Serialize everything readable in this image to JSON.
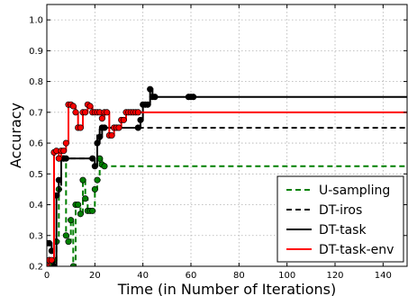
{
  "chart_data": {
    "type": "line",
    "title": "",
    "xlabel": "Time (in Number of Iterations)",
    "ylabel": "Accuracy",
    "xlim": [
      0,
      150
    ],
    "ylim": [
      0.2,
      1.05
    ],
    "xticks": [
      0,
      20,
      40,
      60,
      80,
      100,
      120,
      140
    ],
    "yticks": [
      0.2,
      0.3,
      0.4,
      0.5,
      0.6,
      0.7,
      0.8,
      0.9,
      1.0
    ],
    "xtick_labels": [
      "0",
      "20",
      "40",
      "60",
      "80",
      "100",
      "120",
      "140"
    ],
    "ytick_labels": [
      "0.2",
      "0.3",
      "0.4",
      "0.5",
      "0.6",
      "0.7",
      "0.8",
      "0.9",
      "1.0"
    ],
    "grid": true,
    "legend_position": "bottom-right",
    "series": [
      {
        "name": "U-sampling",
        "color": "#008000",
        "linestyle": "dashed",
        "marker": "circle",
        "x": [
          0,
          1,
          2,
          3,
          4,
          5,
          6,
          7,
          8,
          9,
          10,
          11,
          12,
          13,
          14,
          15,
          16,
          17,
          18,
          19,
          20,
          21,
          22,
          23,
          24,
          150
        ],
        "y": [
          0.2,
          0.22,
          0.2,
          0.22,
          0.28,
          0.45,
          0.55,
          0.55,
          0.3,
          0.28,
          0.35,
          0.2,
          0.4,
          0.4,
          0.37,
          0.48,
          0.42,
          0.38,
          0.38,
          0.38,
          0.45,
          0.48,
          0.55,
          0.53,
          0.525,
          0.525
        ]
      },
      {
        "name": "DT-iros",
        "color": "#000000",
        "linestyle": "dashed",
        "marker": "none",
        "x": [
          0,
          2,
          3,
          4,
          5,
          6,
          20,
          21,
          22,
          24,
          40,
          41,
          150
        ],
        "y": [
          0.275,
          0.275,
          0.43,
          0.43,
          0.45,
          0.55,
          0.55,
          0.625,
          0.65,
          0.65,
          0.65,
          0.65,
          0.65
        ]
      },
      {
        "name": "DT-task",
        "color": "#000000",
        "linestyle": "solid",
        "marker": "circle",
        "x": [
          0,
          1,
          2,
          3,
          4,
          5,
          6,
          7,
          8,
          19,
          20,
          21,
          22,
          23,
          24,
          38,
          39,
          40,
          41,
          42,
          43,
          44,
          45,
          59,
          60,
          61,
          150
        ],
        "y": [
          0.275,
          0.275,
          0.25,
          0.2,
          0.43,
          0.48,
          0.55,
          0.55,
          0.55,
          0.55,
          0.525,
          0.6,
          0.62,
          0.65,
          0.65,
          0.65,
          0.675,
          0.725,
          0.725,
          0.725,
          0.775,
          0.75,
          0.75,
          0.75,
          0.75,
          0.75,
          0.75
        ]
      },
      {
        "name": "DT-task-env",
        "color": "#ff0000",
        "linestyle": "solid",
        "marker": "circle",
        "x": [
          0,
          1,
          2,
          3,
          4,
          5,
          6,
          7,
          8,
          9,
          10,
          11,
          12,
          13,
          14,
          15,
          16,
          17,
          18,
          19,
          20,
          21,
          22,
          23,
          24,
          25,
          26,
          27,
          28,
          29,
          30,
          31,
          32,
          33,
          34,
          35,
          36,
          37,
          38,
          150
        ],
        "y": [
          0.2,
          0.22,
          0.22,
          0.57,
          0.575,
          0.55,
          0.575,
          0.575,
          0.6,
          0.725,
          0.725,
          0.72,
          0.7,
          0.65,
          0.65,
          0.7,
          0.7,
          0.725,
          0.72,
          0.7,
          0.7,
          0.7,
          0.7,
          0.68,
          0.7,
          0.7,
          0.625,
          0.625,
          0.65,
          0.65,
          0.65,
          0.675,
          0.675,
          0.7,
          0.7,
          0.7,
          0.7,
          0.7,
          0.7,
          0.7
        ]
      }
    ]
  }
}
